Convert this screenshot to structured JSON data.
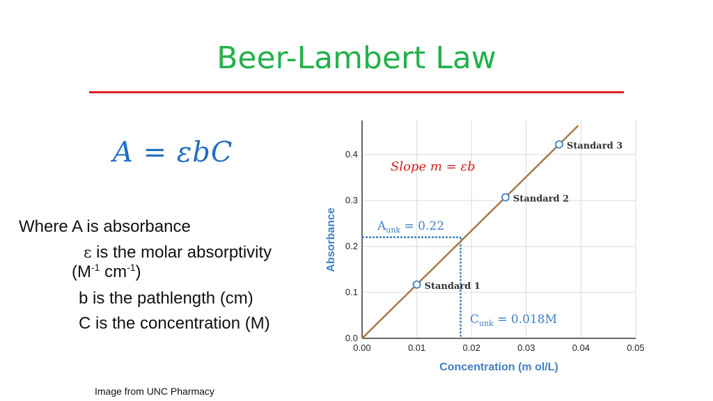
{
  "slide": {
    "title": "Beer-Lambert Law",
    "formula": "A = εbC",
    "definitions": {
      "absorbance": "Where A is absorbance",
      "epsilon_symbol": "ε",
      "epsilon_text": " is the molar absorptivity",
      "units_open": "(M",
      "units_m_exp": "-1",
      "units_cm": " cm",
      "units_cm_exp": "-1",
      "units_close": ")",
      "pathlength": "b is the pathlength (cm)",
      "concentration": "C is the concentration (M)"
    },
    "credit": "Image from UNC Pharmacy",
    "colors": {
      "title": "#22b14c",
      "rule": "#e01e1e",
      "formula": "#1f6fc5",
      "line": "#a87845",
      "axis_label": "#3d7fc4",
      "guide": "#3d7fc4",
      "slope": "#d21e1e"
    }
  },
  "chart_data": {
    "type": "line",
    "xlabel": "Concentration (m ol/L)",
    "ylabel": "Absorbance",
    "xlim": [
      0,
      0.05
    ],
    "ylim": [
      0,
      0.45
    ],
    "xticks": [
      "0.00",
      "0.01",
      "0.02",
      "0.03",
      "0.04",
      "0.05"
    ],
    "yticks": [
      "0.0",
      "0.1",
      "0.2",
      "0.3",
      "0.4"
    ],
    "grid": true,
    "line": {
      "x": [
        0,
        0.0395
      ],
      "y": [
        0,
        0.463
      ]
    },
    "standards": [
      {
        "name": "Standard 1",
        "x": 0.01,
        "y": 0.117
      },
      {
        "name": "Standard 2",
        "x": 0.0262,
        "y": 0.307
      },
      {
        "name": "Standard 3",
        "x": 0.036,
        "y": 0.422
      }
    ],
    "unknown": {
      "x": 0.018,
      "y": 0.22,
      "a_label": "A",
      "a_sub": "unk",
      "a_value": " = 0.22",
      "c_label": "C",
      "c_sub": "unk",
      "c_value": " = 0.018M"
    },
    "slope_annotation": "Slope m =  εb"
  }
}
